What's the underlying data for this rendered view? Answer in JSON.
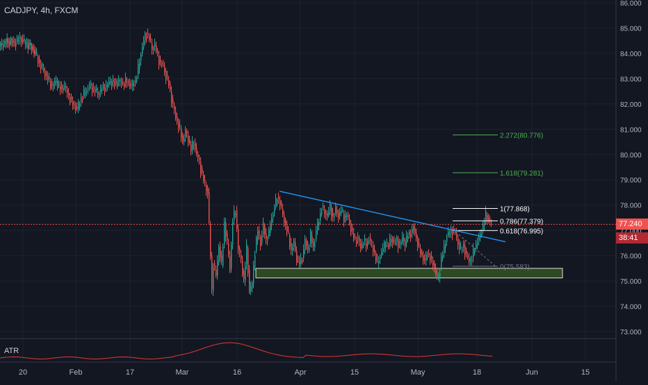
{
  "header": {
    "symbol_title": "CADJPY, 4h, FXCM"
  },
  "atr": {
    "label": "ATR"
  },
  "current": {
    "price_label": "77.240",
    "countdown": "38:41",
    "price": 77.24
  },
  "colors": {
    "background": "#131722",
    "bull": "#26a69a",
    "bear": "#ef5350",
    "trendline": "#2196f3",
    "fib_white": "#ffffff",
    "fib_green": "#4caf50",
    "zone_fill": "#2e4a22",
    "zone_border": "#e0e0e0",
    "price_line": "#ef5350",
    "atr_line": "#e53935"
  },
  "chart_data": {
    "type": "candlestick",
    "title": "CADJPY, 4h, FXCM",
    "ylim": [
      72.6,
      86.1
    ],
    "y_ticks": [
      "86.000",
      "85.000",
      "84.000",
      "83.000",
      "82.000",
      "81.000",
      "80.000",
      "79.000",
      "78.000",
      "77.000",
      "76.000",
      "75.000",
      "74.000",
      "73.000"
    ],
    "x_ticks": [
      "20",
      "Feb",
      "17",
      "Mar",
      "16",
      "Apr",
      "15",
      "May",
      "18",
      "Jun",
      "15"
    ],
    "price_path": [
      [
        0,
        84.3
      ],
      [
        8,
        84.4
      ],
      [
        15,
        84.5
      ],
      [
        22,
        84.4
      ],
      [
        30,
        84.6
      ],
      [
        38,
        84.4
      ],
      [
        45,
        84.3
      ],
      [
        52,
        84.0
      ],
      [
        58,
        83.6
      ],
      [
        64,
        83.3
      ],
      [
        70,
        83.0
      ],
      [
        76,
        82.7
      ],
      [
        82,
        82.9
      ],
      [
        88,
        82.6
      ],
      [
        94,
        82.7
      ],
      [
        100,
        82.3
      ],
      [
        106,
        82.0
      ],
      [
        112,
        81.8
      ],
      [
        118,
        82.2
      ],
      [
        124,
        82.5
      ],
      [
        130,
        82.7
      ],
      [
        136,
        82.6
      ],
      [
        142,
        82.4
      ],
      [
        148,
        82.6
      ],
      [
        154,
        82.7
      ],
      [
        160,
        82.9
      ],
      [
        166,
        82.8
      ],
      [
        172,
        82.9
      ],
      [
        178,
        82.8
      ],
      [
        184,
        82.9
      ],
      [
        190,
        82.7
      ],
      [
        196,
        82.9
      ],
      [
        200,
        83.4
      ],
      [
        204,
        84.0
      ],
      [
        208,
        84.5
      ],
      [
        212,
        84.8
      ],
      [
        216,
        84.6
      ],
      [
        220,
        84.2
      ],
      [
        224,
        84.3
      ],
      [
        228,
        83.9
      ],
      [
        232,
        83.6
      ],
      [
        236,
        83.5
      ],
      [
        240,
        83.1
      ],
      [
        244,
        82.8
      ],
      [
        248,
        82.2
      ],
      [
        252,
        81.7
      ],
      [
        256,
        81.3
      ],
      [
        260,
        81.0
      ],
      [
        264,
        80.5
      ],
      [
        268,
        80.9
      ],
      [
        272,
        80.6
      ],
      [
        276,
        80.2
      ],
      [
        280,
        80.5
      ],
      [
        284,
        80.0
      ],
      [
        288,
        79.7
      ],
      [
        292,
        79.2
      ],
      [
        296,
        78.8
      ],
      [
        300,
        78.5
      ],
      [
        304,
        76.0
      ],
      [
        306,
        74.6
      ],
      [
        308,
        75.7
      ],
      [
        312,
        75.2
      ],
      [
        316,
        76.4
      ],
      [
        320,
        75.6
      ],
      [
        324,
        77.3
      ],
      [
        328,
        76.5
      ],
      [
        332,
        75.5
      ],
      [
        336,
        77.4
      ],
      [
        340,
        77.8
      ],
      [
        344,
        76.3
      ],
      [
        348,
        75.8
      ],
      [
        352,
        75.0
      ],
      [
        356,
        76.3
      ],
      [
        360,
        74.6
      ],
      [
        364,
        74.9
      ],
      [
        368,
        76.2
      ],
      [
        372,
        77.0
      ],
      [
        376,
        76.5
      ],
      [
        380,
        77.2
      ],
      [
        384,
        76.6
      ],
      [
        388,
        76.9
      ],
      [
        392,
        77.5
      ],
      [
        396,
        77.9
      ],
      [
        400,
        78.3
      ],
      [
        404,
        78.1
      ],
      [
        408,
        77.6
      ],
      [
        412,
        77.2
      ],
      [
        416,
        76.8
      ],
      [
        420,
        76.2
      ],
      [
        424,
        76.5
      ],
      [
        428,
        75.9
      ],
      [
        432,
        75.7
      ],
      [
        436,
        75.9
      ],
      [
        440,
        76.6
      ],
      [
        444,
        76.2
      ],
      [
        448,
        76.8
      ],
      [
        452,
        76.3
      ],
      [
        456,
        77.0
      ],
      [
        460,
        77.4
      ],
      [
        464,
        77.9
      ],
      [
        468,
        77.7
      ],
      [
        472,
        77.6
      ],
      [
        476,
        77.9
      ],
      [
        480,
        77.5
      ],
      [
        484,
        77.8
      ],
      [
        488,
        77.6
      ],
      [
        492,
        77.8
      ],
      [
        496,
        77.5
      ],
      [
        500,
        77.6
      ],
      [
        504,
        77.3
      ],
      [
        508,
        76.9
      ],
      [
        512,
        76.6
      ],
      [
        516,
        76.7
      ],
      [
        520,
        76.3
      ],
      [
        524,
        76.6
      ],
      [
        528,
        76.4
      ],
      [
        532,
        76.7
      ],
      [
        536,
        76.4
      ],
      [
        540,
        76.1
      ],
      [
        544,
        75.7
      ],
      [
        548,
        76.0
      ],
      [
        552,
        76.3
      ],
      [
        556,
        76.5
      ],
      [
        560,
        76.4
      ],
      [
        564,
        76.7
      ],
      [
        568,
        76.5
      ],
      [
        572,
        76.6
      ],
      [
        576,
        76.4
      ],
      [
        580,
        76.7
      ],
      [
        584,
        76.5
      ],
      [
        588,
        76.8
      ],
      [
        592,
        76.9
      ],
      [
        596,
        77.1
      ],
      [
        600,
        76.7
      ],
      [
        604,
        76.3
      ],
      [
        608,
        76.0
      ],
      [
        612,
        75.8
      ],
      [
        616,
        76.1
      ],
      [
        620,
        75.9
      ],
      [
        624,
        75.7
      ],
      [
        628,
        75.3
      ],
      [
        632,
        75.1
      ],
      [
        636,
        75.9
      ],
      [
        640,
        76.3
      ],
      [
        644,
        76.8
      ],
      [
        648,
        76.9
      ],
      [
        652,
        77.0
      ],
      [
        656,
        76.9
      ],
      [
        660,
        76.5
      ],
      [
        664,
        76.2
      ],
      [
        668,
        76.4
      ],
      [
        672,
        76.0
      ],
      [
        676,
        75.8
      ],
      [
        680,
        75.9
      ],
      [
        684,
        76.3
      ],
      [
        688,
        76.6
      ],
      [
        692,
        76.8
      ],
      [
        696,
        77.2
      ],
      [
        700,
        77.6
      ],
      [
        704,
        77.4
      ],
      [
        708,
        77.3
      ]
    ],
    "trendline": {
      "x1": 402,
      "y1": 78.55,
      "x2": 727,
      "y2": 76.55
    },
    "fibonacci": [
      {
        "label": "2.272(80.776)",
        "price": 80.776,
        "color": "green"
      },
      {
        "label": "1.618(79.281)",
        "price": 79.281,
        "color": "green"
      },
      {
        "label": "1(77.868)",
        "price": 77.868,
        "color": "white"
      },
      {
        "label": "0.786(77.379)",
        "price": 77.379,
        "color": "white"
      },
      {
        "label": "0.618(76.995)",
        "price": 76.995,
        "color": "white"
      },
      {
        "label": "0(75.583)",
        "price": 75.583,
        "color": "gray"
      }
    ],
    "support_zone": {
      "top": 75.5,
      "bottom": 75.12
    }
  }
}
